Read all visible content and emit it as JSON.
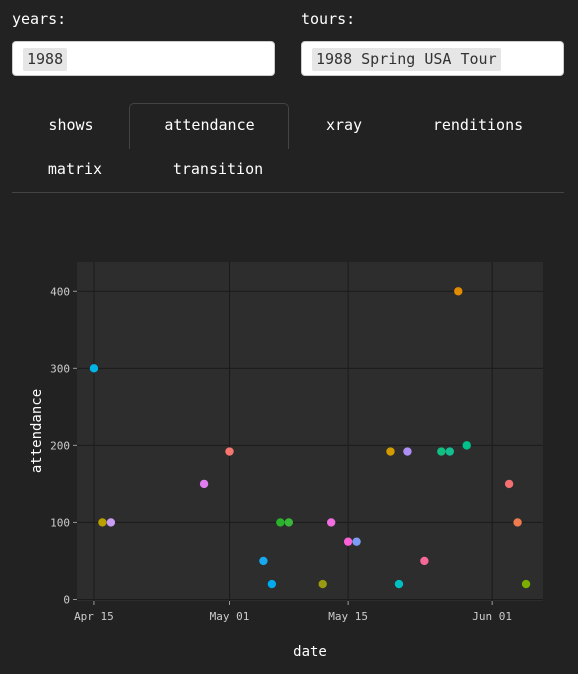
{
  "filters": {
    "years_label": "years:",
    "years_value": "1988",
    "tours_label": "tours:",
    "tours_value": "1988 Spring USA Tour"
  },
  "tabs": [
    {
      "label": "shows",
      "active": false
    },
    {
      "label": "attendance",
      "active": true
    },
    {
      "label": "xray",
      "active": false
    },
    {
      "label": "renditions",
      "active": false
    },
    {
      "label": "matrix",
      "active": false
    },
    {
      "label": "transition",
      "active": false
    }
  ],
  "colors": {
    "background": "#222222",
    "panel": "#2d2d2d",
    "grid": "#1b1b1b",
    "text": "#ffffff",
    "tick_text": "#cccccc"
  },
  "chart_data": {
    "type": "scatter",
    "xlabel": "date",
    "ylabel": "attendance",
    "x_ticks": [
      "Apr 15",
      "May 01",
      "May 15",
      "Jun 01"
    ],
    "x_tick_days": [
      15,
      31,
      45,
      62
    ],
    "y_ticks": [
      0,
      100,
      200,
      300,
      400
    ],
    "xlim_days": [
      13,
      68
    ],
    "ylim": [
      -2,
      438
    ],
    "grid": true,
    "legend": "none",
    "points": [
      {
        "date": "1988-04-15",
        "day": 15,
        "y": 300,
        "color": "#00b4e6"
      },
      {
        "date": "1988-04-16",
        "day": 16,
        "y": 100,
        "color": "#b8a000"
      },
      {
        "date": "1988-04-17",
        "day": 17,
        "y": 100,
        "color": "#c99cf5"
      },
      {
        "date": "1988-04-28",
        "day": 28,
        "y": 150,
        "color": "#e07ef0"
      },
      {
        "date": "1988-05-01",
        "day": 31,
        "y": 192,
        "color": "#f8766d"
      },
      {
        "date": "1988-05-05",
        "day": 35,
        "y": 50,
        "color": "#17a8f0"
      },
      {
        "date": "1988-05-06",
        "day": 36,
        "y": 20,
        "color": "#00aaf0"
      },
      {
        "date": "1988-05-07",
        "day": 37,
        "y": 100,
        "color": "#2ab32a"
      },
      {
        "date": "1988-05-08",
        "day": 38,
        "y": 100,
        "color": "#38b83a"
      },
      {
        "date": "1988-05-12",
        "day": 42,
        "y": 20,
        "color": "#9a9a10"
      },
      {
        "date": "1988-05-13",
        "day": 43,
        "y": 100,
        "color": "#f06ee0"
      },
      {
        "date": "1988-05-15",
        "day": 45,
        "y": 75,
        "color": "#fb61d7"
      },
      {
        "date": "1988-05-16",
        "day": 46,
        "y": 75,
        "color": "#7c9cf5"
      },
      {
        "date": "1988-05-20",
        "day": 50,
        "y": 192,
        "color": "#d49a00"
      },
      {
        "date": "1988-05-21",
        "day": 51,
        "y": 20,
        "color": "#00bfc4"
      },
      {
        "date": "1988-05-22",
        "day": 52,
        "y": 192,
        "color": "#ad8ff5"
      },
      {
        "date": "1988-05-24",
        "day": 54,
        "y": 50,
        "color": "#f6679a"
      },
      {
        "date": "1988-05-26",
        "day": 56,
        "y": 192,
        "color": "#10c080"
      },
      {
        "date": "1988-05-27",
        "day": 57,
        "y": 192,
        "color": "#14be90"
      },
      {
        "date": "1988-05-28",
        "day": 58,
        "y": 400,
        "color": "#e08b00"
      },
      {
        "date": "1988-05-29",
        "day": 59,
        "y": 200,
        "color": "#00c08b"
      },
      {
        "date": "1988-06-03",
        "day": 64,
        "y": 150,
        "color": "#f57070"
      },
      {
        "date": "1988-06-04",
        "day": 65,
        "y": 100,
        "color": "#f07a50"
      },
      {
        "date": "1988-06-05",
        "day": 66,
        "y": 20,
        "color": "#7cae00"
      }
    ]
  }
}
